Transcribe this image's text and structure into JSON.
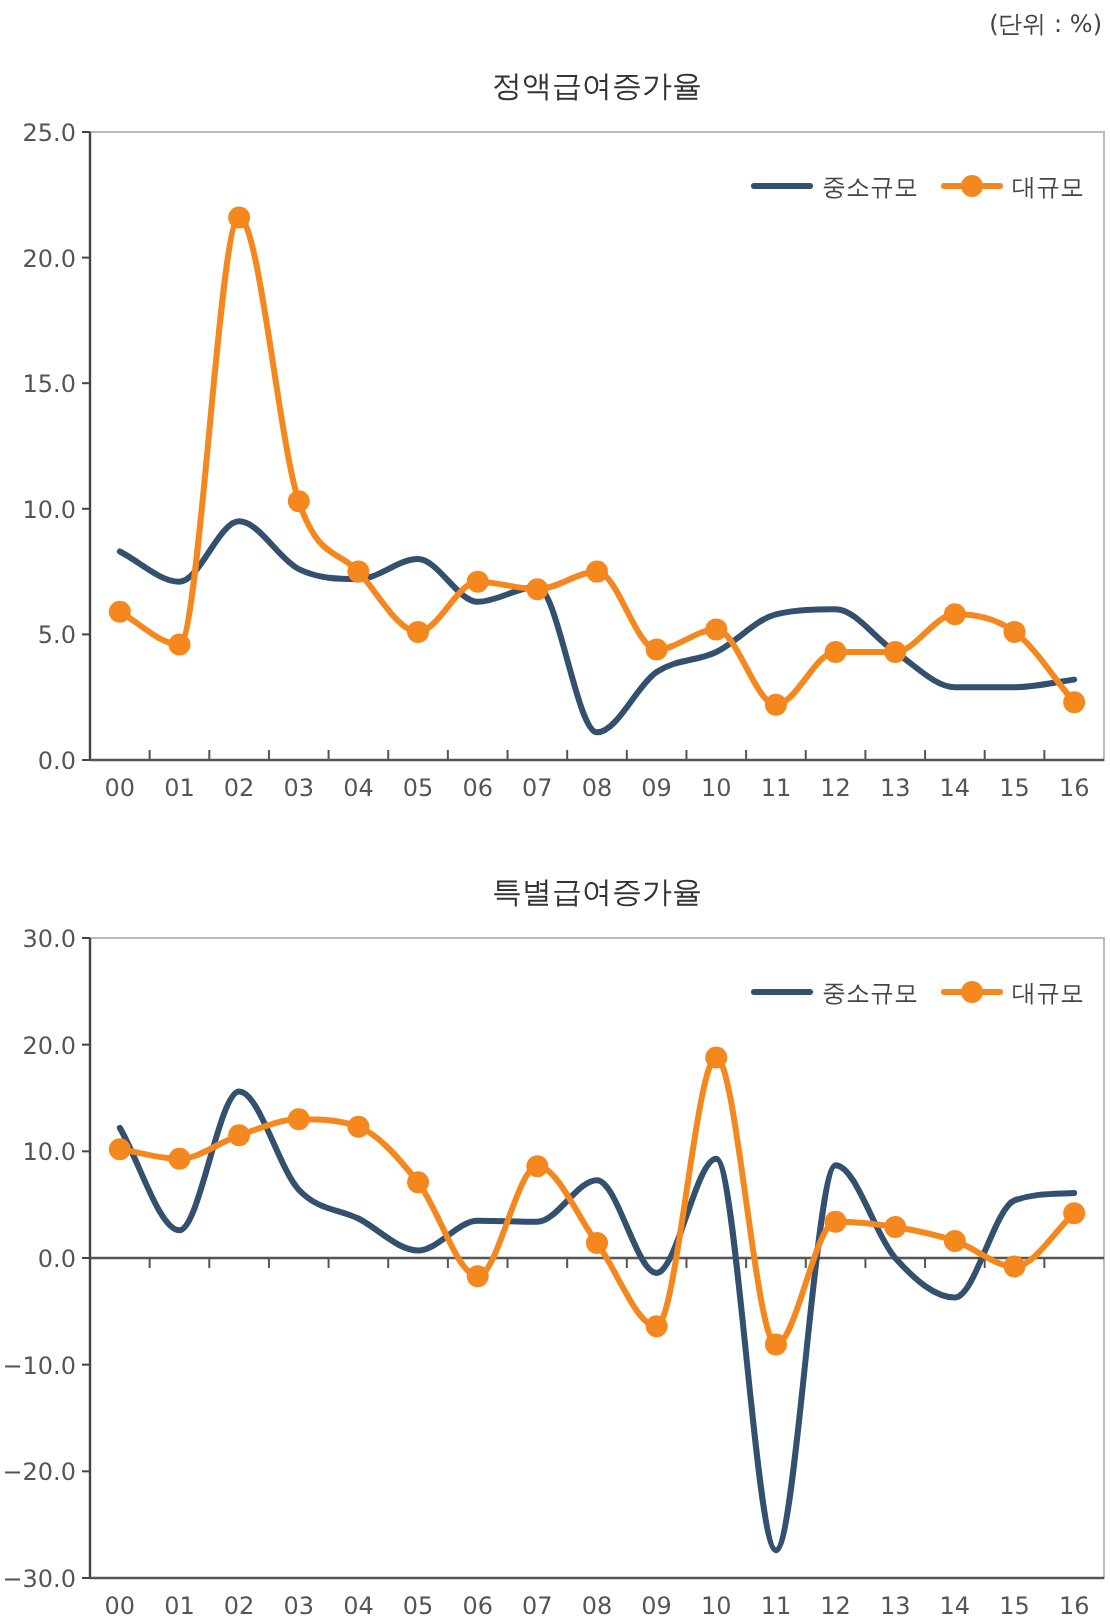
{
  "chart_data": [
    {
      "type": "line",
      "title": "정액급여증가율",
      "annotations": [
        "(단위 : %)"
      ],
      "categories": [
        "00",
        "01",
        "02",
        "03",
        "04",
        "05",
        "06",
        "07",
        "08",
        "09",
        "10",
        "11",
        "12",
        "13",
        "14",
        "15",
        "16"
      ],
      "series": [
        {
          "name": "중소규모",
          "color": "#34506f",
          "marker": "none",
          "values": [
            8.3,
            7.1,
            9.5,
            7.6,
            7.2,
            8.0,
            6.3,
            6.9,
            1.1,
            3.5,
            4.3,
            5.8,
            6.0,
            4.3,
            2.9,
            2.9,
            3.2
          ]
        },
        {
          "name": "대규모",
          "color": "#f5871f",
          "marker": "circle",
          "values": [
            5.9,
            4.6,
            21.6,
            10.3,
            7.5,
            5.1,
            7.1,
            6.8,
            7.5,
            4.4,
            5.2,
            2.2,
            4.3,
            4.3,
            5.8,
            5.1,
            2.3
          ]
        }
      ],
      "ylim": [
        0,
        25
      ],
      "yticks": [
        {
          "value": 0,
          "label": "0.0"
        },
        {
          "value": 5,
          "label": "5.0"
        },
        {
          "value": 10,
          "label": "10.0"
        },
        {
          "value": 15,
          "label": "15.0"
        },
        {
          "value": 20,
          "label": "20.0"
        },
        {
          "value": 25,
          "label": "25.0"
        }
      ],
      "legend": "top right",
      "grid": false,
      "line_style": "solid"
    },
    {
      "type": "line",
      "title": "특별급여증가율",
      "categories": [
        "00",
        "01",
        "02",
        "03",
        "04",
        "05",
        "06",
        "07",
        "08",
        "09",
        "10",
        "11",
        "12",
        "13",
        "14",
        "15",
        "16"
      ],
      "series": [
        {
          "name": "중소규모",
          "color": "#34506f",
          "marker": "none",
          "values": [
            12.2,
            2.6,
            15.6,
            6.4,
            3.7,
            0.7,
            3.5,
            3.4,
            7.3,
            -1.4,
            9.3,
            -27.4,
            8.7,
            0.0,
            -3.7,
            5.4,
            6.1
          ]
        },
        {
          "name": "대규모",
          "color": "#f5871f",
          "marker": "circle",
          "values": [
            10.2,
            9.3,
            11.5,
            13.0,
            12.3,
            7.1,
            -1.7,
            8.6,
            1.4,
            -6.4,
            18.8,
            -8.1,
            3.4,
            2.9,
            1.6,
            -0.8,
            4.2
          ]
        }
      ],
      "ylim": [
        -30,
        30
      ],
      "yticks": [
        {
          "value": -30,
          "label": "−30.0"
        },
        {
          "value": -20,
          "label": "−20.0"
        },
        {
          "value": -10,
          "label": "−10.0"
        },
        {
          "value": 0,
          "label": "0.0"
        },
        {
          "value": 10,
          "label": "10.0"
        },
        {
          "value": 20,
          "label": "20.0"
        },
        {
          "value": 30,
          "label": "30.0"
        }
      ],
      "ref_lines": [
        {
          "axis": "y",
          "value": 0,
          "color": "#555555"
        }
      ],
      "legend": "top right",
      "grid": false,
      "line_style": "solid"
    }
  ]
}
